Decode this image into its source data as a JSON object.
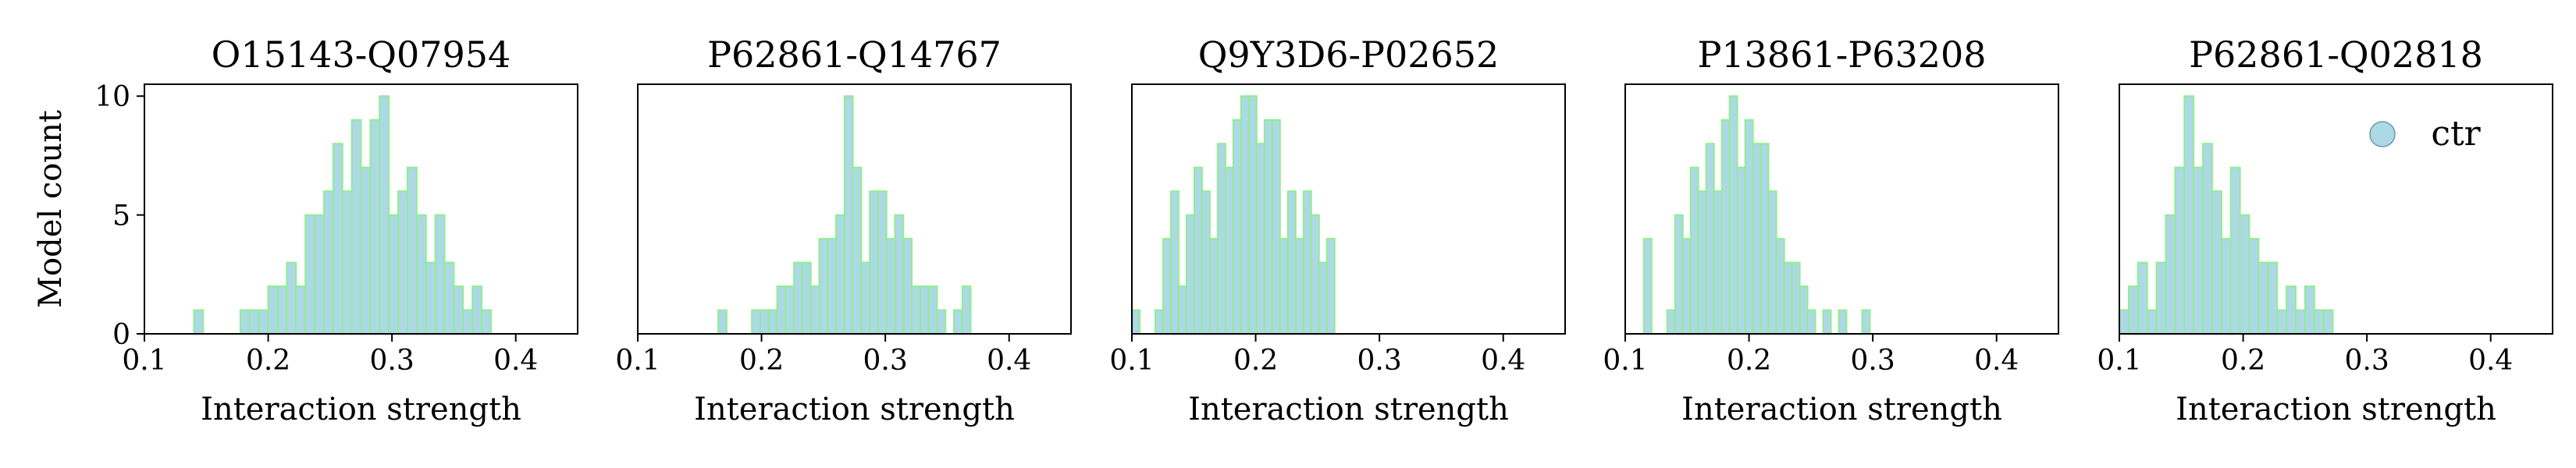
{
  "figure": {
    "ylabel": "Model count"
  },
  "legend": {
    "label": "ctr",
    "marker_color": "#add8e6",
    "marker_edge": "#6a9aa8"
  },
  "style": {
    "fill_color": "#add8e6",
    "edge_color": "#90ee90"
  },
  "chart_data": [
    {
      "type": "histogram",
      "title": "O15143-Q07954",
      "xlabel": "Interaction strength",
      "xlim": [
        0.1,
        0.45
      ],
      "ylim": [
        0,
        10.5
      ],
      "xticks": [
        "0.1",
        "0.2",
        "0.3",
        "0.4"
      ],
      "yticks": [
        "0",
        "5",
        "10"
      ],
      "bin_width": 0.0075,
      "bin_start": 0.14,
      "counts": [
        1,
        0,
        0,
        0,
        0,
        1,
        1,
        1,
        2,
        2,
        3,
        2,
        5,
        5,
        6,
        8,
        6,
        9,
        7,
        9,
        10,
        5,
        6,
        7,
        5,
        3,
        5,
        3,
        2,
        1,
        2,
        1
      ]
    },
    {
      "type": "histogram",
      "title": "P62861-Q14767",
      "xlabel": "Interaction strength",
      "xlim": [
        0.1,
        0.45
      ],
      "ylim": [
        0,
        10.5
      ],
      "xticks": [
        "0.1",
        "0.2",
        "0.3",
        "0.4"
      ],
      "yticks": [],
      "bin_width": 0.0068,
      "bin_start": 0.165,
      "counts": [
        1,
        0,
        0,
        0,
        1,
        1,
        1,
        2,
        2,
        3,
        3,
        2,
        4,
        4,
        5,
        10,
        7,
        3,
        6,
        6,
        4,
        5,
        4,
        2,
        2,
        2,
        1,
        0,
        1,
        2
      ]
    },
    {
      "type": "histogram",
      "title": "Q9Y3D6-P02652",
      "xlabel": "Interaction strength",
      "xlim": [
        0.1,
        0.45
      ],
      "ylim": [
        0,
        10.5
      ],
      "xticks": [
        "0.1",
        "0.2",
        "0.3",
        "0.4"
      ],
      "yticks": [],
      "bin_width": 0.0063,
      "bin_start": 0.1,
      "counts": [
        1,
        0,
        0,
        1,
        4,
        6,
        2,
        5,
        7,
        6,
        4,
        8,
        7,
        9,
        10,
        10,
        8,
        9,
        9,
        4,
        6,
        4,
        6,
        5,
        3,
        4
      ]
    },
    {
      "type": "histogram",
      "title": "P13861-P63208",
      "xlabel": "Interaction strength",
      "xlim": [
        0.1,
        0.45
      ],
      "ylim": [
        0,
        10.5
      ],
      "xticks": [
        "0.1",
        "0.2",
        "0.3",
        "0.4"
      ],
      "yticks": [],
      "bin_width": 0.0063,
      "bin_start": 0.115,
      "counts": [
        4,
        0,
        0,
        1,
        5,
        4,
        7,
        6,
        8,
        6,
        9,
        10,
        7,
        9,
        8,
        8,
        6,
        4,
        3,
        3,
        2,
        1,
        0,
        1,
        0,
        1,
        0,
        0,
        1
      ]
    },
    {
      "type": "histogram",
      "title": "P62861-Q02818",
      "xlabel": "Interaction strength",
      "xlim": [
        0.1,
        0.45
      ],
      "ylim": [
        0,
        10.5
      ],
      "xticks": [
        "0.1",
        "0.2",
        "0.3",
        "0.4"
      ],
      "yticks": [],
      "bin_width": 0.0075,
      "bin_start": 0.1,
      "counts": [
        1,
        2,
        3,
        1,
        3,
        5,
        7,
        10,
        7,
        8,
        6,
        4,
        7,
        5,
        4,
        3,
        3,
        1,
        2,
        1,
        2,
        1,
        1
      ]
    }
  ]
}
